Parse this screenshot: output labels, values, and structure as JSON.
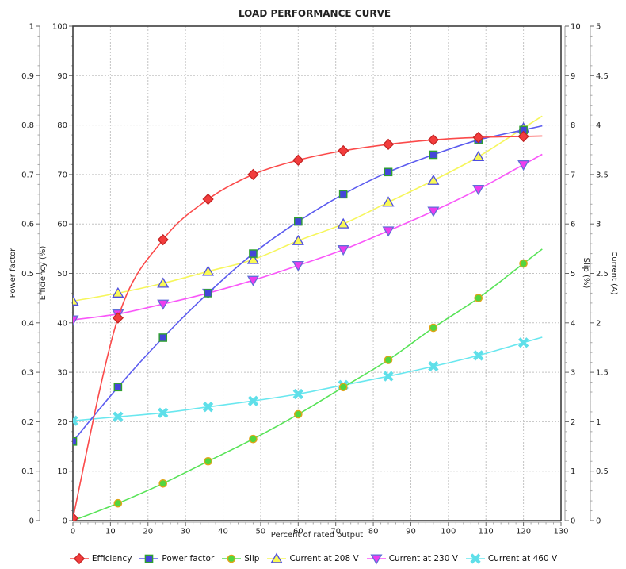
{
  "chart_data": {
    "type": "line",
    "title": "LOAD PERFORMANCE CURVE",
    "xlabel": "Percent of rated output",
    "x_axis": {
      "min": 0,
      "max": 130,
      "tick_step": 10
    },
    "y_axes": [
      {
        "id": "pf",
        "label": "Power factor",
        "side": "left",
        "min": 0,
        "max": 1,
        "tick_step": 0.1
      },
      {
        "id": "eff",
        "label": "Efficiency (%)",
        "side": "left",
        "min": 0,
        "max": 100,
        "tick_step": 10
      },
      {
        "id": "slip",
        "label": "Slip (%)",
        "side": "right",
        "min": 0,
        "max": 10,
        "tick_step": 1
      },
      {
        "id": "cur",
        "label": "Current (A)",
        "side": "right",
        "min": 0,
        "max": 5,
        "tick_step": 0.5
      }
    ],
    "x": [
      0,
      12,
      24,
      36,
      48,
      60,
      72,
      84,
      96,
      108,
      120
    ],
    "series": [
      {
        "name": "Efficiency",
        "axis": "eff",
        "marker": "diamond",
        "line_color": "#fb4a4a",
        "marker_fill": "#f23d3d",
        "marker_stroke": "#c32222",
        "values": [
          0.5,
          41,
          56.8,
          65,
          70,
          72.9,
          74.8,
          76.1,
          77,
          77.5,
          77.7
        ]
      },
      {
        "name": "Power factor",
        "axis": "pf",
        "marker": "square",
        "line_color": "#5b5bef",
        "marker_fill": "#4545da",
        "marker_stroke": "#2fa12f",
        "values": [
          0.16,
          0.27,
          0.37,
          0.46,
          0.54,
          0.605,
          0.66,
          0.705,
          0.74,
          0.77,
          0.79
        ]
      },
      {
        "name": "Slip",
        "axis": "slip",
        "marker": "circle",
        "line_color": "#57e357",
        "marker_fill": "#52d63e",
        "marker_stroke": "#dfa518",
        "values": [
          null,
          0.35,
          0.75,
          1.2,
          1.65,
          2.15,
          2.7,
          3.25,
          3.9,
          4.5,
          5.2
        ]
      },
      {
        "name": "Current at 208 V",
        "axis": "cur",
        "marker": "triangle-up",
        "line_color": "#f6f65c",
        "marker_fill": "#f9f955",
        "marker_stroke": "#4d4de0",
        "values": [
          2.22,
          2.3,
          2.4,
          2.52,
          2.64,
          2.83,
          3.0,
          3.22,
          3.44,
          3.68,
          3.97
        ]
      },
      {
        "name": "Current at 230 V",
        "axis": "cur",
        "marker": "triangle-down",
        "line_color": "#f957f9",
        "marker_fill": "#ee3cee",
        "marker_stroke": "#5f6fd8",
        "values": [
          2.03,
          2.09,
          2.19,
          2.3,
          2.43,
          2.58,
          2.74,
          2.93,
          3.13,
          3.35,
          3.6
        ]
      },
      {
        "name": "Current at 460 V",
        "axis": "cur",
        "marker": "x",
        "line_color": "#69e7ef",
        "marker_fill": "#5fdfe9",
        "marker_stroke": "#5fdfe9",
        "values": [
          1.01,
          1.05,
          1.09,
          1.15,
          1.21,
          1.28,
          1.37,
          1.46,
          1.56,
          1.67,
          1.8
        ]
      }
    ],
    "legend_position": "bottom",
    "grid": true,
    "line_extend_to_x": 125
  },
  "colors": {
    "grid": "#c3c3c3",
    "plot_border": "#3e3e3e",
    "axis_line": "#9b9b9b",
    "major_tick": "#666666",
    "minor_tick": "#aaaaaa",
    "tick_text": "#222222"
  }
}
